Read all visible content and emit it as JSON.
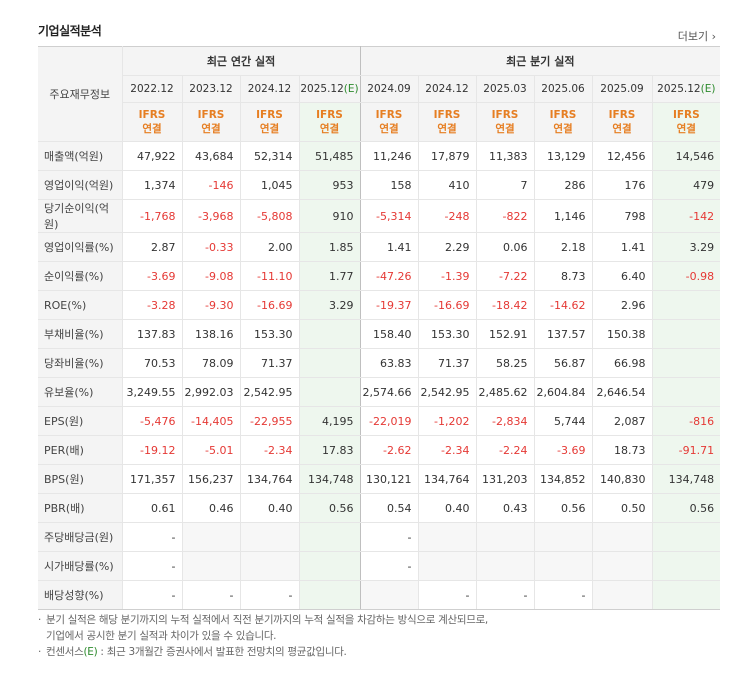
{
  "title": "기업실적분석",
  "more_label": "더보기",
  "more_icon": "chevron-right-icon",
  "row_header_label": "주요재무정보",
  "groups": {
    "annual": "최근 연간 실적",
    "quarter": "최근 분기 실적"
  },
  "periods": [
    "2022.12",
    "2023.12",
    "2024.12",
    "2025.12",
    "2024.09",
    "2024.12",
    "2025.03",
    "2025.06",
    "2025.09",
    "2025.12"
  ],
  "estimate_mark": "(E)",
  "ifrs_line1": "IFRS",
  "ifrs_line2": "연결",
  "rows": [
    {
      "label": "매출액(억원)",
      "values": [
        "47,922",
        "43,684",
        "52,314",
        "51,485",
        "11,246",
        "17,879",
        "11,383",
        "13,129",
        "12,456",
        "14,546"
      ]
    },
    {
      "label": "영업이익(억원)",
      "values": [
        "1,374",
        "-146",
        "1,045",
        "953",
        "158",
        "410",
        "7",
        "286",
        "176",
        "479"
      ]
    },
    {
      "label": "당기순이익(억원)",
      "values": [
        "-1,768",
        "-3,968",
        "-5,808",
        "910",
        "-5,314",
        "-248",
        "-822",
        "1,146",
        "798",
        "-142"
      ]
    },
    {
      "label": "영업이익률(%)",
      "values": [
        "2.87",
        "-0.33",
        "2.00",
        "1.85",
        "1.41",
        "2.29",
        "0.06",
        "2.18",
        "1.41",
        "3.29"
      ]
    },
    {
      "label": "순이익률(%)",
      "values": [
        "-3.69",
        "-9.08",
        "-11.10",
        "1.77",
        "-47.26",
        "-1.39",
        "-7.22",
        "8.73",
        "6.40",
        "-0.98"
      ]
    },
    {
      "label": "ROE(%)",
      "values": [
        "-3.28",
        "-9.30",
        "-16.69",
        "3.29",
        "-19.37",
        "-16.69",
        "-18.42",
        "-14.62",
        "2.96",
        ""
      ]
    },
    {
      "label": "부채비율(%)",
      "values": [
        "137.83",
        "138.16",
        "153.30",
        "",
        "158.40",
        "153.30",
        "152.91",
        "137.57",
        "150.38",
        ""
      ]
    },
    {
      "label": "당좌비율(%)",
      "values": [
        "70.53",
        "78.09",
        "71.37",
        "",
        "63.83",
        "71.37",
        "58.25",
        "56.87",
        "66.98",
        ""
      ]
    },
    {
      "label": "유보율(%)",
      "values": [
        "3,249.55",
        "2,992.03",
        "2,542.95",
        "",
        "2,574.66",
        "2,542.95",
        "2,485.62",
        "2,604.84",
        "2,646.54",
        ""
      ]
    },
    {
      "label": "EPS(원)",
      "values": [
        "-5,476",
        "-14,405",
        "-22,955",
        "4,195",
        "-22,019",
        "-1,202",
        "-2,834",
        "5,744",
        "2,087",
        "-816"
      ]
    },
    {
      "label": "PER(배)",
      "values": [
        "-19.12",
        "-5.01",
        "-2.34",
        "17.83",
        "-2.62",
        "-2.34",
        "-2.24",
        "-3.69",
        "18.73",
        "-91.71"
      ]
    },
    {
      "label": "BPS(원)",
      "values": [
        "171,357",
        "156,237",
        "134,764",
        "134,748",
        "130,121",
        "134,764",
        "131,203",
        "134,852",
        "140,830",
        "134,748"
      ]
    },
    {
      "label": "PBR(배)",
      "values": [
        "0.61",
        "0.46",
        "0.40",
        "0.56",
        "0.54",
        "0.40",
        "0.43",
        "0.56",
        "0.50",
        "0.56"
      ]
    },
    {
      "label": "주당배당금(원)",
      "values": [
        "-",
        "",
        "",
        "",
        "-",
        "",
        "",
        "",
        "",
        ""
      ]
    },
    {
      "label": "시가배당률(%)",
      "values": [
        "-",
        "",
        "",
        "",
        "-",
        "",
        "",
        "",
        "",
        ""
      ]
    },
    {
      "label": "배당성향(%)",
      "values": [
        "-",
        "-",
        "-",
        "",
        "",
        "-",
        "-",
        "-",
        "",
        ""
      ]
    }
  ],
  "notes": [
    {
      "line1": "분기 실적은 해당 분기까지의 누적 실적에서 직전 분기까지의 누적 실적을 차감하는 방식으로 계산되므로,",
      "line2": "기업에서 공시한 분기 실적과 차이가 있을 수 있습니다."
    },
    {
      "pre": "컨센서스",
      "mark": "(E)",
      "post": " : 최근 3개월간 증권사에서 발표한 전망치의 평균값입니다."
    }
  ]
}
